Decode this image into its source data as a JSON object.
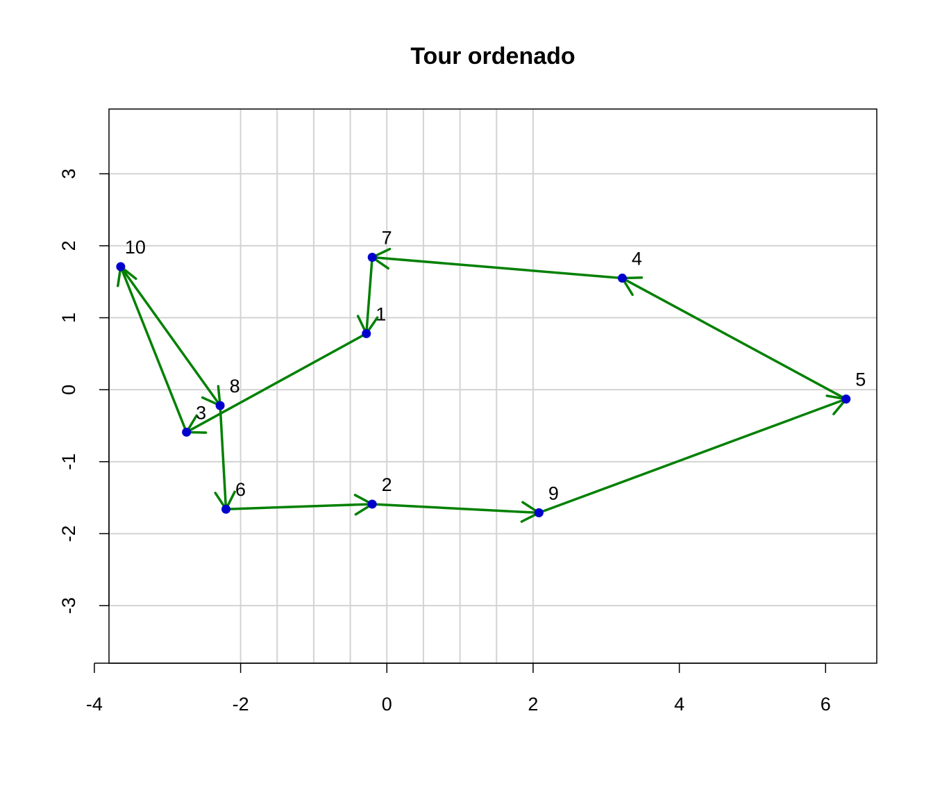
{
  "chart_data": {
    "type": "scatter",
    "title": "Tour ordenado",
    "xlabel": "",
    "ylabel": "",
    "xlim": [
      -3.8,
      6.7
    ],
    "ylim": [
      -3.8,
      3.9
    ],
    "x_ticks": [
      -4,
      -2,
      0,
      2,
      4,
      6
    ],
    "y_ticks": [
      -3,
      -2,
      -1,
      0,
      1,
      2,
      3
    ],
    "grid": {
      "on": true,
      "vertical_at": [
        -2,
        -1.5,
        -1,
        -0.5,
        0,
        0.5,
        1,
        1.5,
        2
      ],
      "horizontal_at": [
        -3,
        -2,
        -1,
        0,
        1,
        2,
        3
      ]
    },
    "points": [
      {
        "label": "1",
        "x": -0.28,
        "y": 0.78
      },
      {
        "label": "2",
        "x": -0.2,
        "y": -1.59
      },
      {
        "label": "3",
        "x": -2.74,
        "y": -0.59
      },
      {
        "label": "4",
        "x": 3.22,
        "y": 1.55
      },
      {
        "label": "5",
        "x": 6.28,
        "y": -0.13
      },
      {
        "label": "6",
        "x": -2.2,
        "y": -1.66
      },
      {
        "label": "7",
        "x": -0.2,
        "y": 1.84
      },
      {
        "label": "8",
        "x": -2.28,
        "y": -0.22
      },
      {
        "label": "9",
        "x": 2.08,
        "y": -1.71
      },
      {
        "label": "10",
        "x": -3.64,
        "y": 1.71
      }
    ],
    "tour": [
      "8",
      "6",
      "2",
      "9",
      "5",
      "4",
      "7",
      "1",
      "3",
      "10",
      "8"
    ],
    "colors": {
      "points": "#0000cd",
      "arrows": "#008000",
      "grid": "#d3d3d3",
      "axes": "#000000"
    }
  }
}
